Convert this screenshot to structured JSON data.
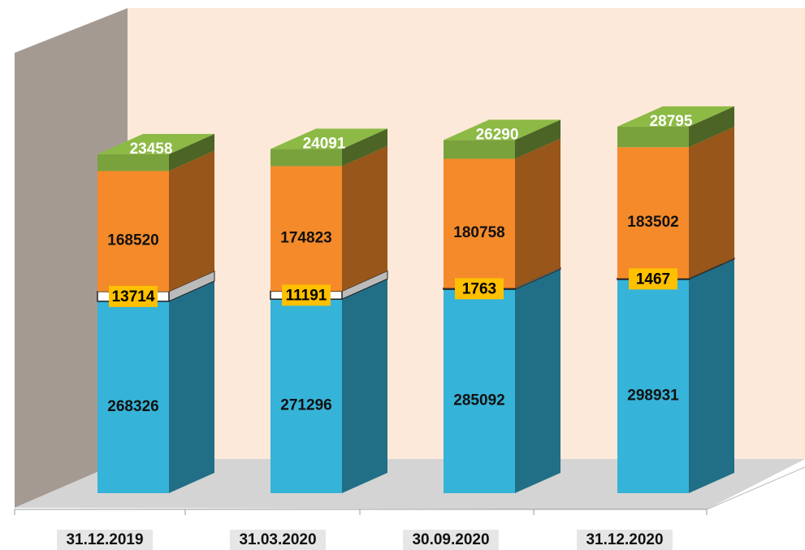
{
  "chart_data": {
    "type": "bar3d_stacked",
    "categories": [
      "31.12.2019",
      "31.03.2020",
      "30.09.2020",
      "31.12.2020"
    ],
    "series": [
      {
        "color": "#36b3d8",
        "values": [
          268326,
          271296,
          285092,
          298931
        ]
      },
      {
        "color": "#ffffff",
        "values": [
          13714,
          11191,
          1763,
          1467
        ]
      },
      {
        "color": "#f58a2a",
        "values": [
          168520,
          174823,
          180758,
          183502
        ]
      },
      {
        "color": "#7aa23c",
        "values": [
          23458,
          24091,
          26290,
          28795
        ]
      }
    ]
  }
}
